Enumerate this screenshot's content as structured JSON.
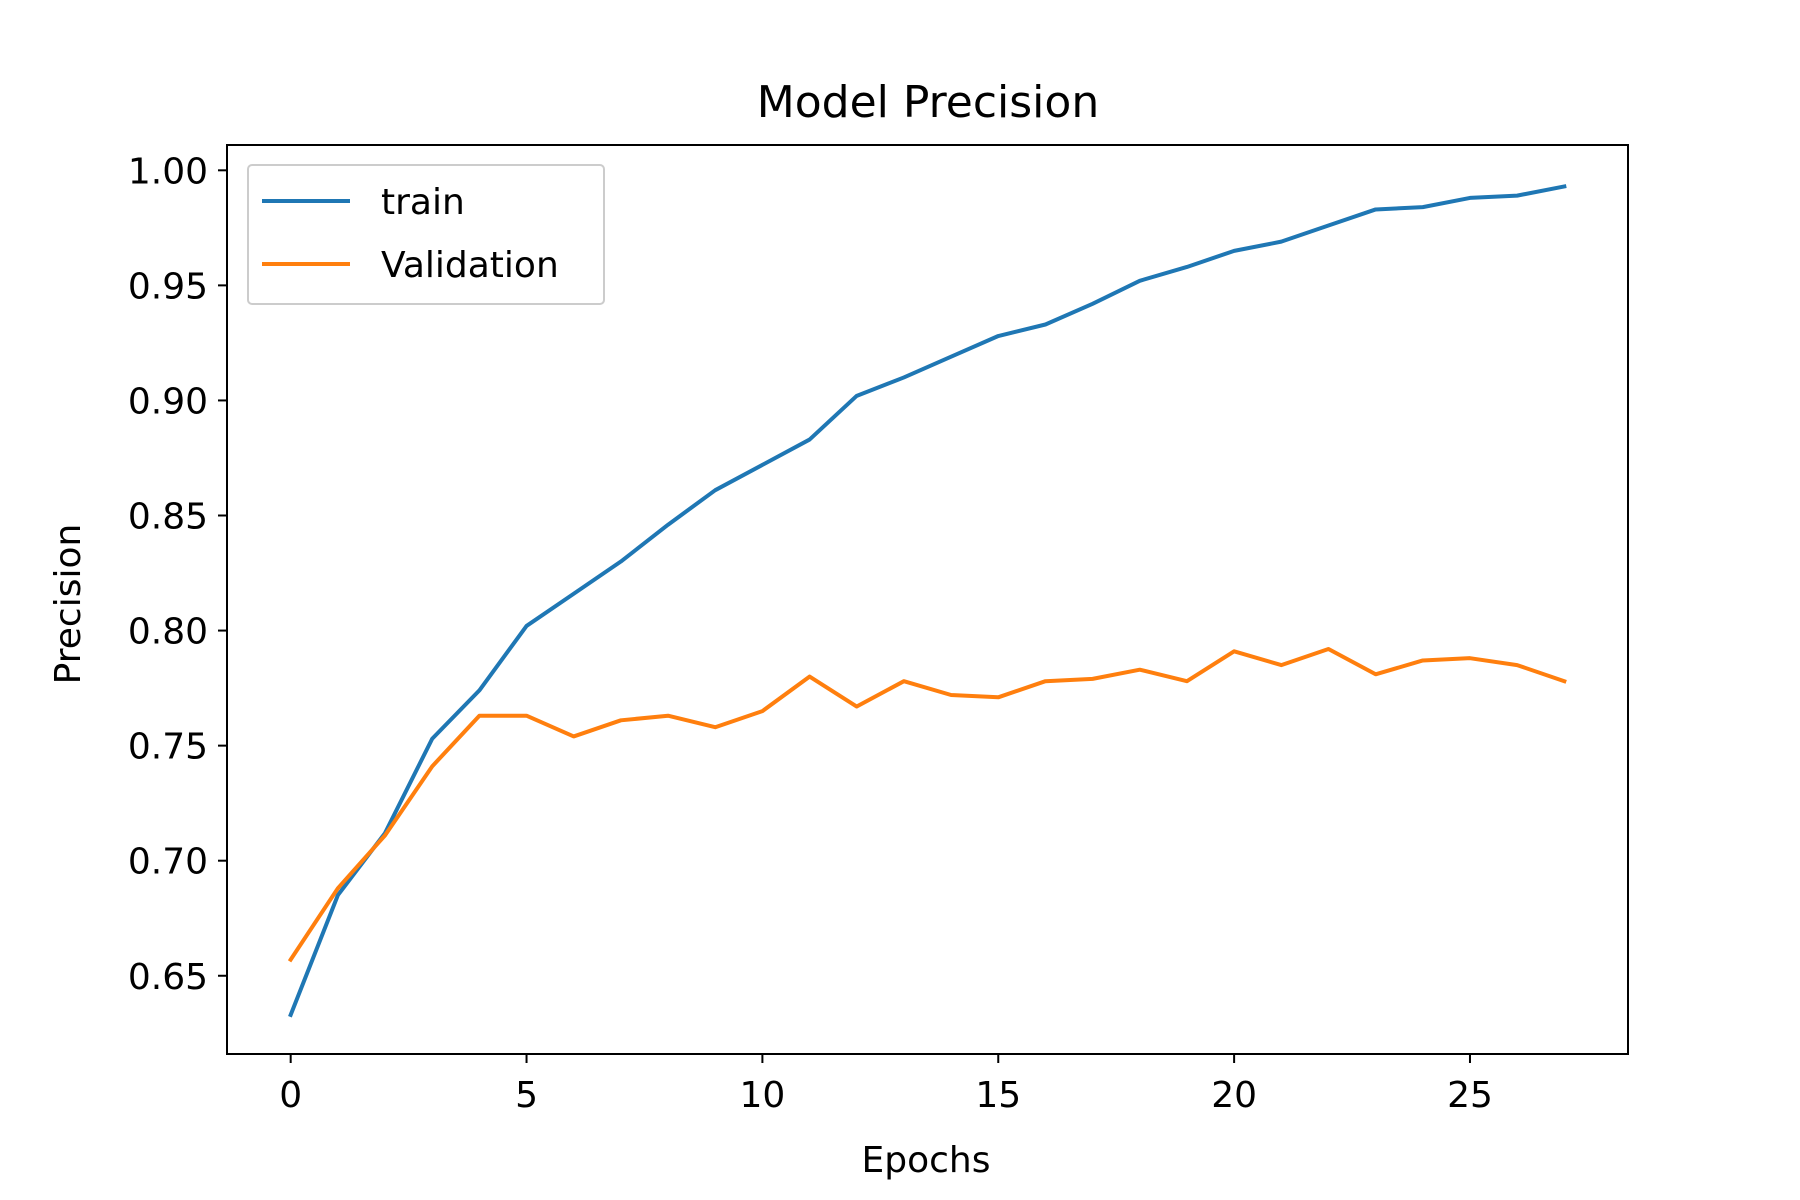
{
  "chart_data": {
    "type": "line",
    "title": "Model Precision",
    "xlabel": "Epochs",
    "ylabel": "Precision",
    "xlim": [
      -1.35,
      28.35
    ],
    "ylim": [
      0.616,
      1.011
    ],
    "xticks": [
      0,
      5,
      10,
      15,
      20,
      25
    ],
    "xtick_labels": [
      "0",
      "5",
      "10",
      "15",
      "20",
      "25"
    ],
    "yticks": [
      0.65,
      0.7,
      0.75,
      0.8,
      0.85,
      0.9,
      0.95,
      1.0
    ],
    "ytick_labels": [
      "0.65",
      "0.70",
      "0.75",
      "0.80",
      "0.85",
      "0.90",
      "0.95",
      "1.00"
    ],
    "grid": false,
    "legend_position": "upper-left",
    "x": [
      0,
      1,
      2,
      3,
      4,
      5,
      6,
      7,
      8,
      9,
      10,
      11,
      12,
      13,
      14,
      15,
      16,
      17,
      18,
      19,
      20,
      21,
      22,
      23,
      24,
      25,
      26,
      27
    ],
    "series": [
      {
        "name": "train",
        "color": "#1f77b4",
        "values": [
          0.633,
          0.685,
          0.712,
          0.753,
          0.774,
          0.802,
          0.816,
          0.83,
          0.846,
          0.861,
          0.872,
          0.883,
          0.902,
          0.91,
          0.919,
          0.928,
          0.933,
          0.942,
          0.952,
          0.958,
          0.965,
          0.969,
          0.976,
          0.983,
          0.984,
          0.988,
          0.989,
          0.993
        ]
      },
      {
        "name": "Validation",
        "color": "#ff7f0e",
        "values": [
          0.657,
          0.688,
          0.711,
          0.741,
          0.763,
          0.763,
          0.754,
          0.761,
          0.763,
          0.758,
          0.765,
          0.78,
          0.767,
          0.778,
          0.772,
          0.771,
          0.778,
          0.779,
          0.783,
          0.778,
          0.791,
          0.785,
          0.792,
          0.781,
          0.787,
          0.788,
          0.785,
          0.778
        ]
      }
    ]
  }
}
